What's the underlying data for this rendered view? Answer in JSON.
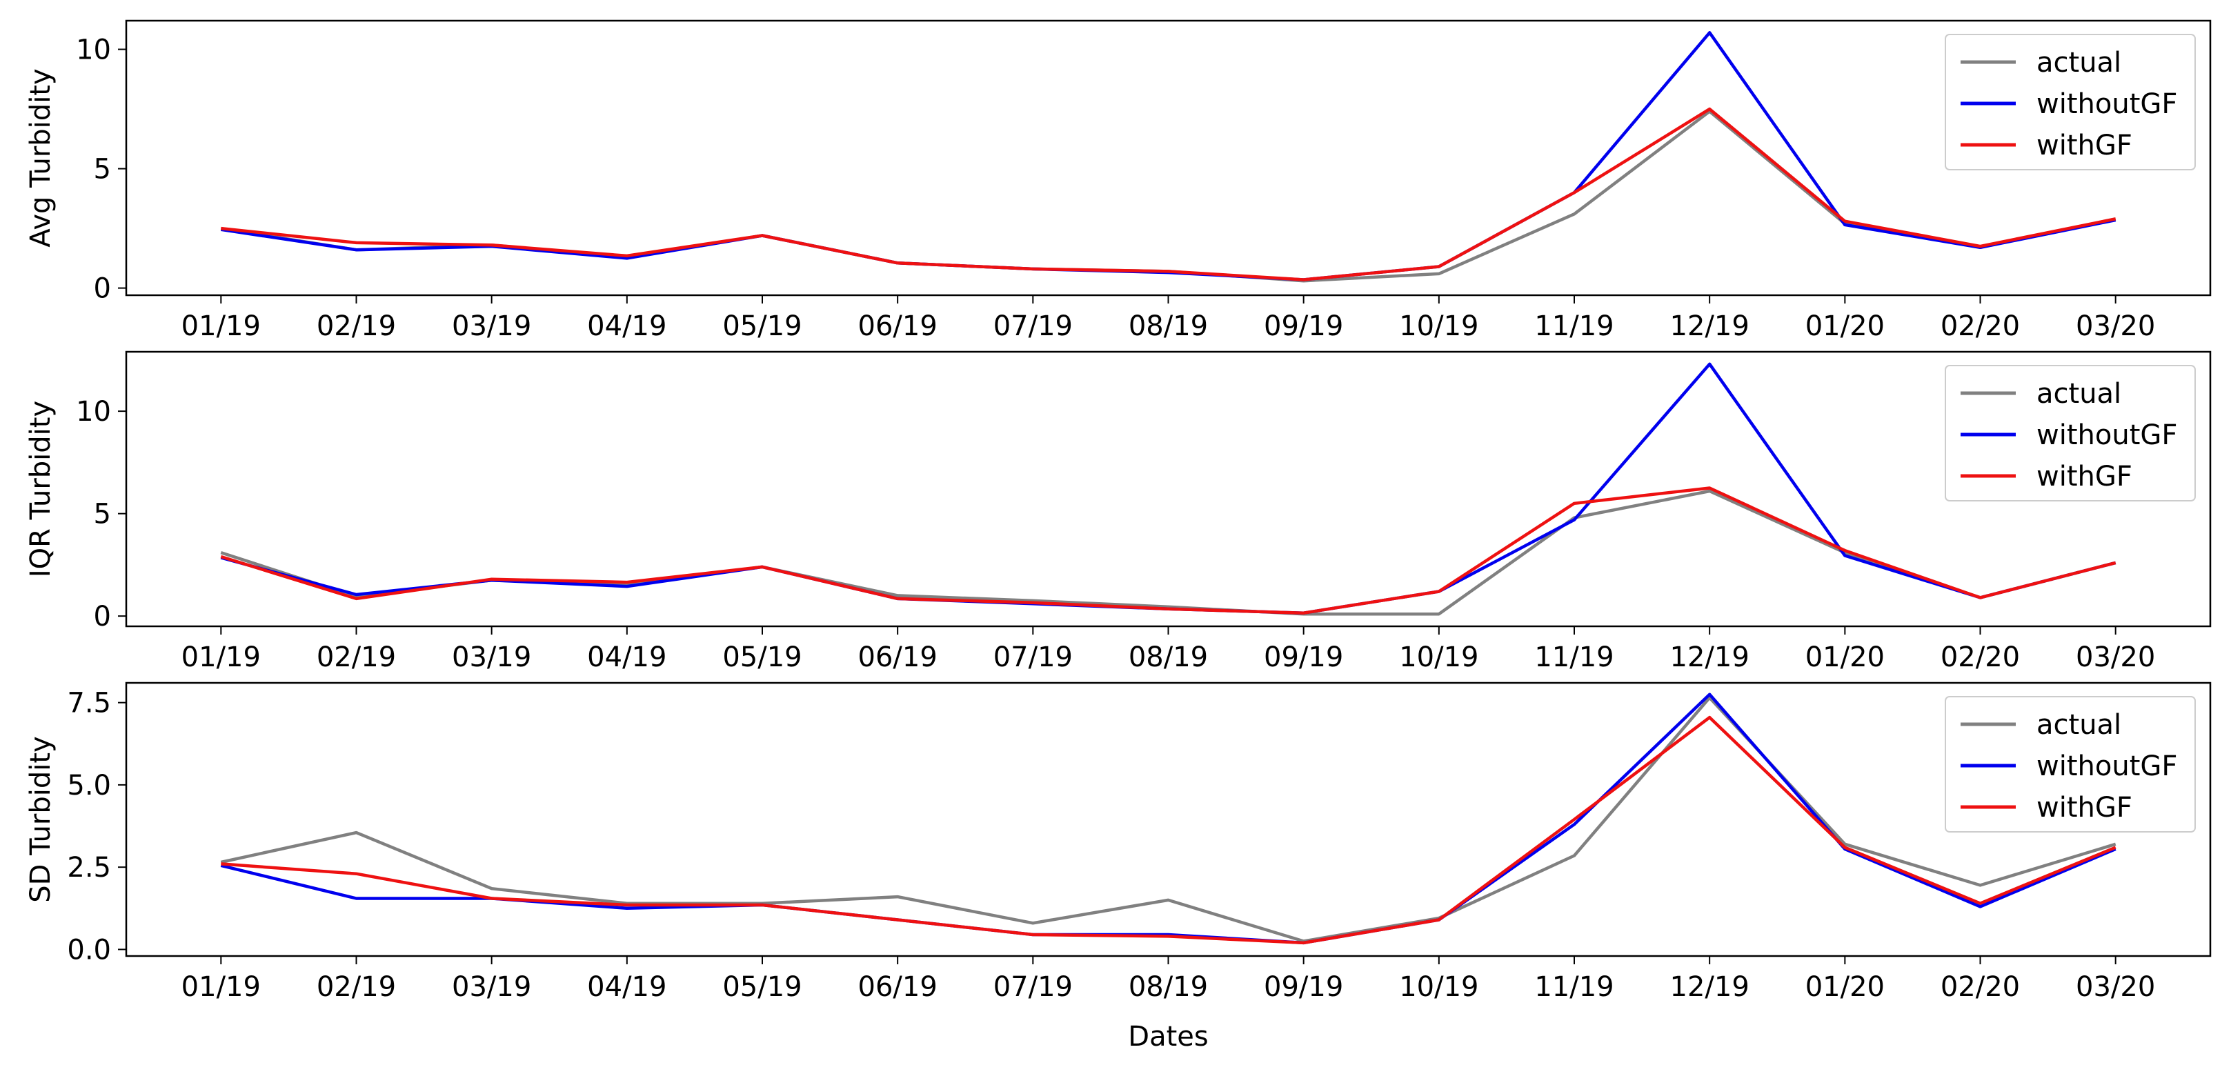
{
  "chart_data": [
    {
      "type": "line",
      "ylabel": "Avg Turbidity",
      "ylim": [
        -0.3,
        11.2
      ],
      "yticks": [
        0,
        5,
        10
      ],
      "xlabel": "",
      "categories": [
        "01/19",
        "02/19",
        "03/19",
        "04/19",
        "05/19",
        "06/19",
        "07/19",
        "08/19",
        "09/19",
        "10/19",
        "11/19",
        "12/19",
        "01/20",
        "02/20",
        "03/20"
      ],
      "legend_position": "top-right",
      "series": [
        {
          "name": "actual",
          "color": "#808080",
          "values": [
            2.5,
            1.6,
            1.8,
            1.3,
            2.2,
            1.05,
            0.8,
            0.7,
            0.3,
            0.6,
            3.1,
            7.4,
            2.7,
            1.7,
            2.9
          ]
        },
        {
          "name": "withoutGF",
          "color": "#0000ee",
          "values": [
            2.45,
            1.6,
            1.75,
            1.25,
            2.2,
            1.05,
            0.8,
            0.65,
            0.35,
            0.9,
            4.0,
            10.7,
            2.65,
            1.7,
            2.85
          ]
        },
        {
          "name": "withGF",
          "color": "#ee1111",
          "values": [
            2.5,
            1.9,
            1.8,
            1.35,
            2.2,
            1.05,
            0.8,
            0.7,
            0.35,
            0.9,
            4.0,
            7.5,
            2.8,
            1.75,
            2.9
          ]
        }
      ]
    },
    {
      "type": "line",
      "ylabel": "IQR Turbidity",
      "ylim": [
        -0.5,
        12.9
      ],
      "yticks": [
        0,
        5,
        10
      ],
      "xlabel": "",
      "categories": [
        "01/19",
        "02/19",
        "03/19",
        "04/19",
        "05/19",
        "06/19",
        "07/19",
        "08/19",
        "09/19",
        "10/19",
        "11/19",
        "12/19",
        "01/20",
        "02/20",
        "03/20"
      ],
      "legend_position": "top-right",
      "series": [
        {
          "name": "actual",
          "color": "#808080",
          "values": [
            3.1,
            0.95,
            1.75,
            1.55,
            2.4,
            1.0,
            0.75,
            0.45,
            0.1,
            0.1,
            4.8,
            6.1,
            3.1,
            0.9,
            2.6
          ]
        },
        {
          "name": "withoutGF",
          "color": "#0000ee",
          "values": [
            2.85,
            1.05,
            1.75,
            1.45,
            2.4,
            0.85,
            0.6,
            0.35,
            0.15,
            1.2,
            4.7,
            12.3,
            2.95,
            0.9,
            2.6
          ]
        },
        {
          "name": "withGF",
          "color": "#ee1111",
          "values": [
            2.9,
            0.85,
            1.8,
            1.65,
            2.4,
            0.85,
            0.65,
            0.35,
            0.15,
            1.2,
            5.5,
            6.25,
            3.2,
            0.9,
            2.6
          ]
        }
      ]
    },
    {
      "type": "line",
      "ylabel": "SD Turbidity",
      "xlabel": "Dates",
      "ylim": [
        -0.2,
        8.1
      ],
      "yticks": [
        0.0,
        2.5,
        5.0,
        7.5
      ],
      "yticklabels": [
        "0.0",
        "2.5",
        "5.0",
        "7.5"
      ],
      "categories": [
        "01/19",
        "02/19",
        "03/19",
        "04/19",
        "05/19",
        "06/19",
        "07/19",
        "08/19",
        "09/19",
        "10/19",
        "11/19",
        "12/19",
        "01/20",
        "02/20",
        "03/20"
      ],
      "legend_position": "top-right",
      "series": [
        {
          "name": "actual",
          "color": "#808080",
          "values": [
            2.65,
            3.55,
            1.85,
            1.4,
            1.4,
            1.6,
            0.8,
            1.5,
            0.25,
            0.95,
            2.85,
            7.65,
            3.2,
            1.95,
            3.2
          ]
        },
        {
          "name": "withoutGF",
          "color": "#0000ee",
          "values": [
            2.55,
            1.55,
            1.55,
            1.25,
            1.35,
            0.9,
            0.45,
            0.45,
            0.2,
            0.9,
            3.8,
            7.75,
            3.05,
            1.3,
            3.05
          ]
        },
        {
          "name": "withGF",
          "color": "#ee1111",
          "values": [
            2.6,
            2.3,
            1.55,
            1.35,
            1.35,
            0.9,
            0.45,
            0.4,
            0.2,
            0.9,
            3.95,
            7.05,
            3.1,
            1.4,
            3.1
          ]
        }
      ]
    }
  ]
}
